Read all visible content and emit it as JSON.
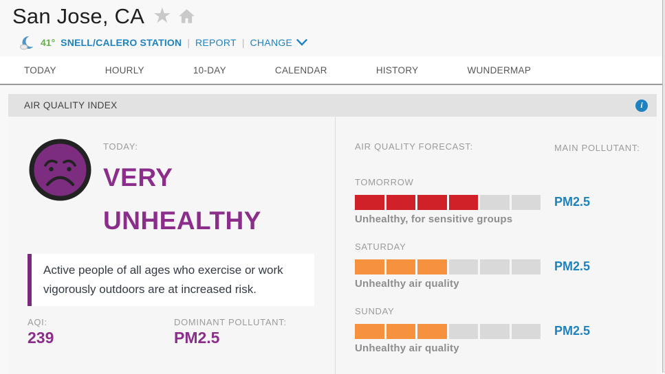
{
  "page": {
    "location_title": "San Jose, CA",
    "station_bar": {
      "temperature": "41°",
      "station_name": "SNELL/CALERO STATION",
      "report_label": "REPORT",
      "change_label": "CHANGE",
      "separator": "|"
    },
    "nav_tabs": [
      "TODAY",
      "HOURLY",
      "10-DAY",
      "CALENDAR",
      "HISTORY",
      "WUNDERMAP"
    ]
  },
  "aqi_module": {
    "title": "AIR QUALITY INDEX",
    "info_icon_glyph": "i",
    "today": {
      "label": "TODAY:",
      "severity_line1": "VERY",
      "severity_line2": "UNHEALTHY",
      "advisory": "Active people of all ages who exercise or work vigorously outdoors are at increased risk.",
      "aqi_label": "AQI:",
      "aqi_value": "239",
      "dominant_pollutant_label": "DOMINANT POLLUTANT:",
      "dominant_pollutant_value": "PM2.5",
      "face_icon": "very-unhealthy-sad-face"
    },
    "forecast": {
      "heading": "AIR QUALITY FORECAST:",
      "main_pollutant_heading": "MAIN POLLUTANT:",
      "rows": [
        {
          "day": "TOMORROW",
          "segments_filled": 4,
          "segments_total": 6,
          "bar_color": "#d02129",
          "description": "Unhealthy, for sensitive groups",
          "main_pollutant": "PM2.5"
        },
        {
          "day": "SATURDAY",
          "segments_filled": 3,
          "segments_total": 6,
          "bar_color": "#f6913e",
          "description": "Unhealthy air quality",
          "main_pollutant": "PM2.5"
        },
        {
          "day": "SUNDAY",
          "segments_filled": 3,
          "segments_total": 6,
          "bar_color": "#f6913e",
          "description": "Unhealthy air quality",
          "main_pollutant": "PM2.5"
        }
      ]
    }
  },
  "colors": {
    "severity_purple": "#8b2e8b",
    "advisory_border_purple": "#7a2a7a",
    "face_purple": "#7c2d80",
    "bar_red": "#d02129",
    "bar_orange": "#f6913e",
    "bar_empty": "#d9d9d9",
    "link_blue": "#1d82be",
    "temperature_green": "#67b14c"
  }
}
